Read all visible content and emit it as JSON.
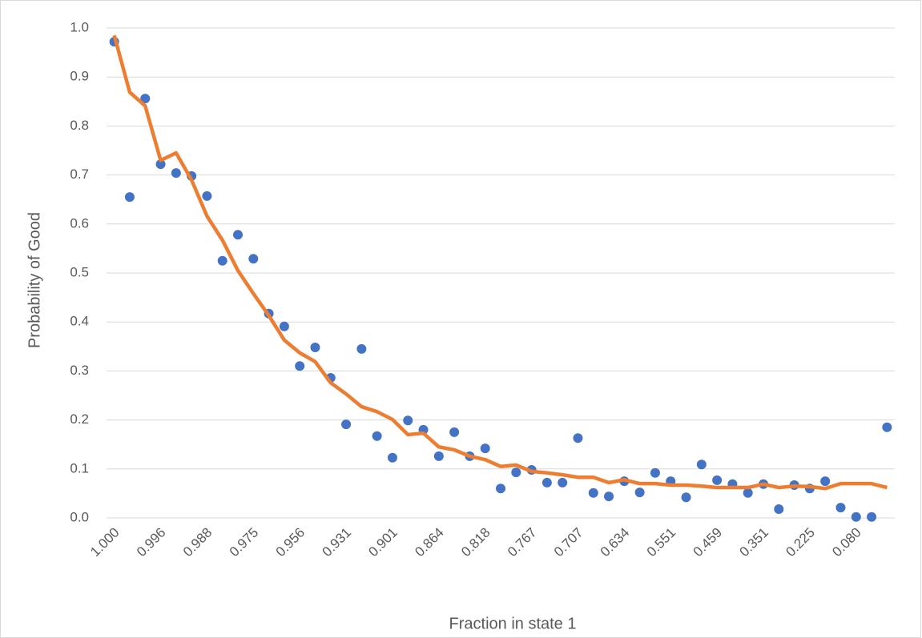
{
  "chart_data": {
    "type": "combo",
    "x_label": "Fraction in state 1",
    "y_label": "Probability of Good",
    "categories": [
      "1.000",
      null,
      null,
      "0.996",
      null,
      null,
      "0.988",
      null,
      null,
      "0.975",
      null,
      null,
      "0.956",
      null,
      null,
      "0.931",
      null,
      null,
      "0.901",
      null,
      null,
      "0.864",
      null,
      null,
      "0.818",
      null,
      null,
      "0.767",
      null,
      null,
      "0.707",
      null,
      null,
      "0.634",
      null,
      null,
      "0.551",
      null,
      null,
      "0.459",
      null,
      null,
      "0.351",
      null,
      null,
      "0.225",
      null,
      null,
      "0.080",
      null,
      null
    ],
    "series": [
      {
        "type": "scatter",
        "color": "#4472c4",
        "values": [
          0.972,
          0.655,
          0.856,
          0.722,
          0.704,
          0.698,
          0.657,
          0.525,
          0.578,
          0.529,
          0.417,
          0.391,
          0.31,
          0.348,
          0.286,
          0.191,
          0.345,
          0.167,
          0.123,
          0.199,
          0.18,
          0.126,
          0.175,
          0.126,
          0.142,
          0.06,
          0.093,
          0.098,
          0.072,
          0.072,
          0.163,
          0.051,
          0.044,
          0.075,
          0.052,
          0.092,
          0.075,
          0.042,
          0.109,
          0.077,
          0.069,
          0.051,
          0.069,
          0.018,
          0.067,
          0.06,
          0.075,
          0.021,
          0.002,
          0.002,
          0.185
        ]
      },
      {
        "type": "line",
        "color": "#ed7d31",
        "values": [
          0.985,
          0.869,
          0.841,
          0.73,
          0.745,
          0.69,
          0.616,
          0.567,
          0.505,
          0.458,
          0.413,
          0.363,
          0.337,
          0.319,
          0.276,
          0.253,
          0.227,
          0.217,
          0.201,
          0.17,
          0.173,
          0.145,
          0.139,
          0.126,
          0.119,
          0.105,
          0.108,
          0.095,
          0.092,
          0.088,
          0.083,
          0.083,
          0.072,
          0.078,
          0.07,
          0.07,
          0.067,
          0.067,
          0.065,
          0.062,
          0.062,
          0.062,
          0.069,
          0.062,
          0.065,
          0.064,
          0.06,
          0.07,
          0.07,
          0.07,
          0.062
        ]
      }
    ],
    "ylim": [
      0,
      1
    ],
    "yticks": [
      {
        "value": 0,
        "label": "0.0"
      },
      {
        "value": 0.1,
        "label": "0.1"
      },
      {
        "value": 0.2,
        "label": "0.2"
      },
      {
        "value": 0.3,
        "label": "0.3"
      },
      {
        "value": 0.4,
        "label": "0.4"
      },
      {
        "value": 0.5,
        "label": "0.5"
      },
      {
        "value": 0.6,
        "label": "0.6"
      },
      {
        "value": 0.7,
        "label": "0.7"
      },
      {
        "value": 0.8,
        "label": "0.8"
      },
      {
        "value": 0.9,
        "label": "0.9"
      },
      {
        "value": 1,
        "label": "1.0"
      }
    ],
    "grid": true
  }
}
